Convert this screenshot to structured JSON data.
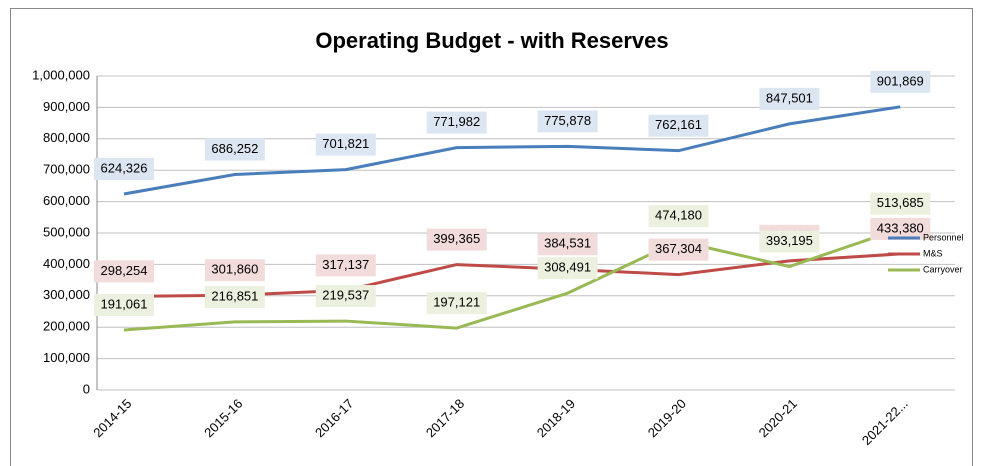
{
  "chart_data": {
    "type": "line",
    "title": "Operating Budget - with Reserves",
    "categories": [
      "2014-15",
      "2015-16",
      "2016-17",
      "2017-18",
      "2018-19",
      "2019-20",
      "2020-21",
      "2021-22..."
    ],
    "series": [
      {
        "name": "Personnel",
        "color": "#4a7ebb",
        "label_bg": "#dce6f2",
        "values": [
          624326,
          686252,
          701821,
          771982,
          775878,
          762161,
          847501,
          901869
        ],
        "value_labels": [
          "624,326",
          "686,252",
          "701,821",
          "771,982",
          "775,878",
          "762,161",
          "847,501",
          "901,869"
        ]
      },
      {
        "name": "M&S",
        "color": "#be4b48",
        "label_bg": "#f2dcdb",
        "values": [
          298254,
          301860,
          317137,
          399365,
          384531,
          367304,
          411255,
          433380
        ],
        "value_labels": [
          "298,254",
          "301,860",
          "317,137",
          "399,365",
          "384,531",
          "367,304",
          "411,255",
          "433,380"
        ]
      },
      {
        "name": "Carryover",
        "color": "#98b954",
        "label_bg": "#ebf1de",
        "values": [
          191061,
          216851,
          219537,
          197121,
          308491,
          474180,
          393195,
          513685
        ],
        "value_labels": [
          "191,061",
          "216,851",
          "219,537",
          "197,121",
          "308,491",
          "474,180",
          "393,195",
          "513,685"
        ]
      }
    ],
    "ylim": [
      0,
      1000000
    ],
    "yticks": [
      0,
      {
        "value": 100000,
        "label": "100,000"
      },
      {
        "value": 200000,
        "label": "200,000"
      },
      {
        "value": 300000,
        "label": "300,000"
      },
      {
        "value": 400000,
        "label": "400,000"
      },
      {
        "value": 500000,
        "label": "500,000"
      },
      {
        "value": 600000,
        "label": "600,000"
      },
      {
        "value": 700000,
        "label": "700,000"
      },
      {
        "value": 800000,
        "label": "800,000"
      },
      {
        "value": 900000,
        "label": "900,000"
      },
      {
        "value": 1000000,
        "label": "1,000,000"
      }
    ],
    "grid": true,
    "legend": "right"
  }
}
